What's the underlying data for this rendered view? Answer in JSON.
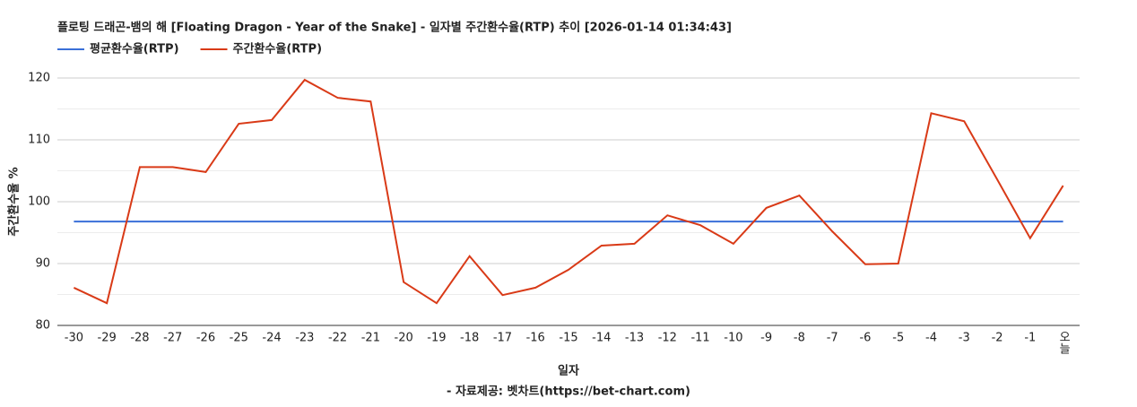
{
  "chart_data": {
    "type": "line",
    "title": "플로팅 드래곤-뱀의 해 [Floating Dragon - Year of the Snake] - 일자별 주간환수율(RTP) 추이 [2026-01-14 01:34:43]",
    "x_label": "일자",
    "y_label": "주간환수율 %",
    "source": "- 자료제공: 벳차트(https://bet-chart.com)",
    "categories": [
      "-30",
      "-29",
      "-28",
      "-27",
      "-26",
      "-25",
      "-24",
      "-23",
      "-22",
      "-21",
      "-20",
      "-19",
      "-18",
      "-17",
      "-16",
      "-15",
      "-14",
      "-13",
      "-12",
      "-11",
      "-10",
      "-9",
      "-8",
      "-7",
      "-6",
      "-5",
      "-4",
      "-3",
      "-2",
      "-1",
      "오늘"
    ],
    "series": [
      {
        "name": "평균환수율(RTP)",
        "color": "#3a6fd8",
        "values": [
          96.8,
          96.8,
          96.8,
          96.8,
          96.8,
          96.8,
          96.8,
          96.8,
          96.8,
          96.8,
          96.8,
          96.8,
          96.8,
          96.8,
          96.8,
          96.8,
          96.8,
          96.8,
          96.8,
          96.8,
          96.8,
          96.8,
          96.8,
          96.8,
          96.8,
          96.8,
          96.8,
          96.8,
          96.8,
          96.8,
          96.8
        ]
      },
      {
        "name": "주간환수율(RTP)",
        "color": "#d93a17",
        "values": [
          86.1,
          83.6,
          105.6,
          105.6,
          104.8,
          112.6,
          113.2,
          119.7,
          116.8,
          116.2,
          87.0,
          83.6,
          91.2,
          84.9,
          86.1,
          89.0,
          92.9,
          93.2,
          97.8,
          96.2,
          93.2,
          99.0,
          101.0,
          95.2,
          89.9,
          90.0,
          114.3,
          113.0,
          103.6,
          94.1,
          102.6
        ]
      }
    ],
    "ylim": [
      80,
      120
    ],
    "yticks": [
      80,
      90,
      100,
      110,
      120
    ],
    "grid": true,
    "minor_grid": true,
    "legend": "top-left"
  }
}
